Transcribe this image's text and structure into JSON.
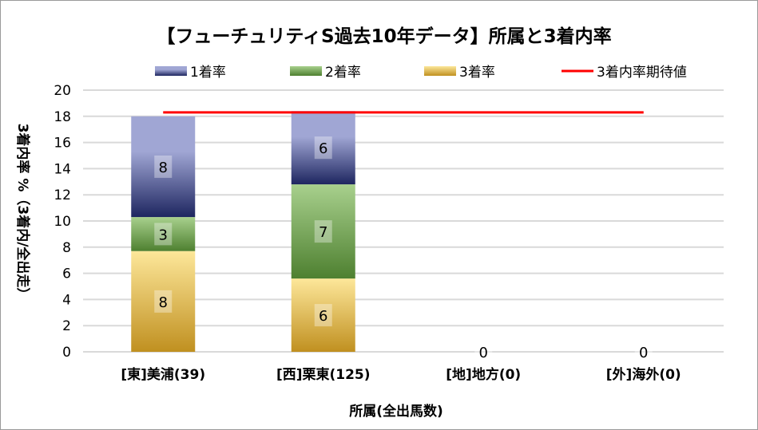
{
  "chart_data": {
    "type": "bar",
    "stacked": true,
    "title": "【フューチュリティS過去10年データ】所属と3着内率",
    "xlabel": "所属(全出馬数)",
    "ylabel": "3着内率 %（3着内/全出走）",
    "ylim": [
      0,
      20
    ],
    "yticks": [
      0,
      2,
      4,
      6,
      8,
      10,
      12,
      14,
      16,
      18,
      20
    ],
    "grid": true,
    "legend_position": "top",
    "categories": [
      "[東]美浦(39)",
      "[西]栗東(125)",
      "[地]地方(0)",
      "[外]海外(0)"
    ],
    "series": [
      {
        "name": "3着率",
        "values": [
          7.7,
          5.6,
          0,
          0
        ],
        "labels": [
          "8",
          "6",
          "",
          ""
        ],
        "colors": [
          "#fde79a",
          "#c09020"
        ]
      },
      {
        "name": "2着率",
        "values": [
          2.6,
          7.2,
          0,
          0
        ],
        "labels": [
          "3",
          "7",
          "",
          ""
        ],
        "colors": [
          "#a8d08d",
          "#4e8030"
        ]
      },
      {
        "name": "1着率",
        "values": [
          7.7,
          5.6,
          0,
          0
        ],
        "labels": [
          "8",
          "6",
          "0",
          "0"
        ],
        "colors": [
          "#a0a6d4",
          "#1e2660"
        ]
      }
    ],
    "reference_line": {
      "name": "3着内率期待値",
      "value": 18.3,
      "color": "#ff0000"
    }
  }
}
